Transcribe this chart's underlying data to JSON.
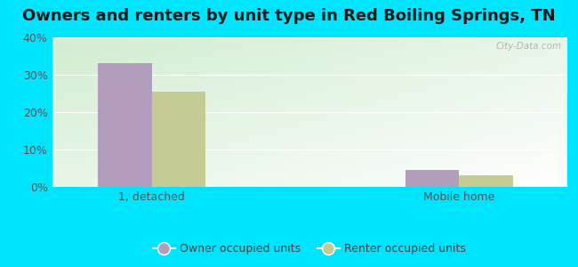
{
  "title": "Owners and renters by unit type in Red Boiling Springs, TN",
  "categories": [
    "1, detached",
    "Mobile home"
  ],
  "owner_values": [
    33.0,
    4.5
  ],
  "renter_values": [
    25.5,
    3.0
  ],
  "owner_color": "#b39dbd",
  "renter_color": "#c5cb92",
  "background_color": "#00e5ff",
  "ylim": [
    0,
    40
  ],
  "yticks": [
    0,
    10,
    20,
    30,
    40
  ],
  "bar_width": 0.35,
  "group_positions": [
    0.5,
    2.5
  ],
  "xlim": [
    -0.15,
    3.2
  ],
  "legend_labels": [
    "Owner occupied units",
    "Renter occupied units"
  ],
  "watermark": "City-Data.com",
  "title_fontsize": 13,
  "axis_fontsize": 9,
  "legend_fontsize": 9
}
